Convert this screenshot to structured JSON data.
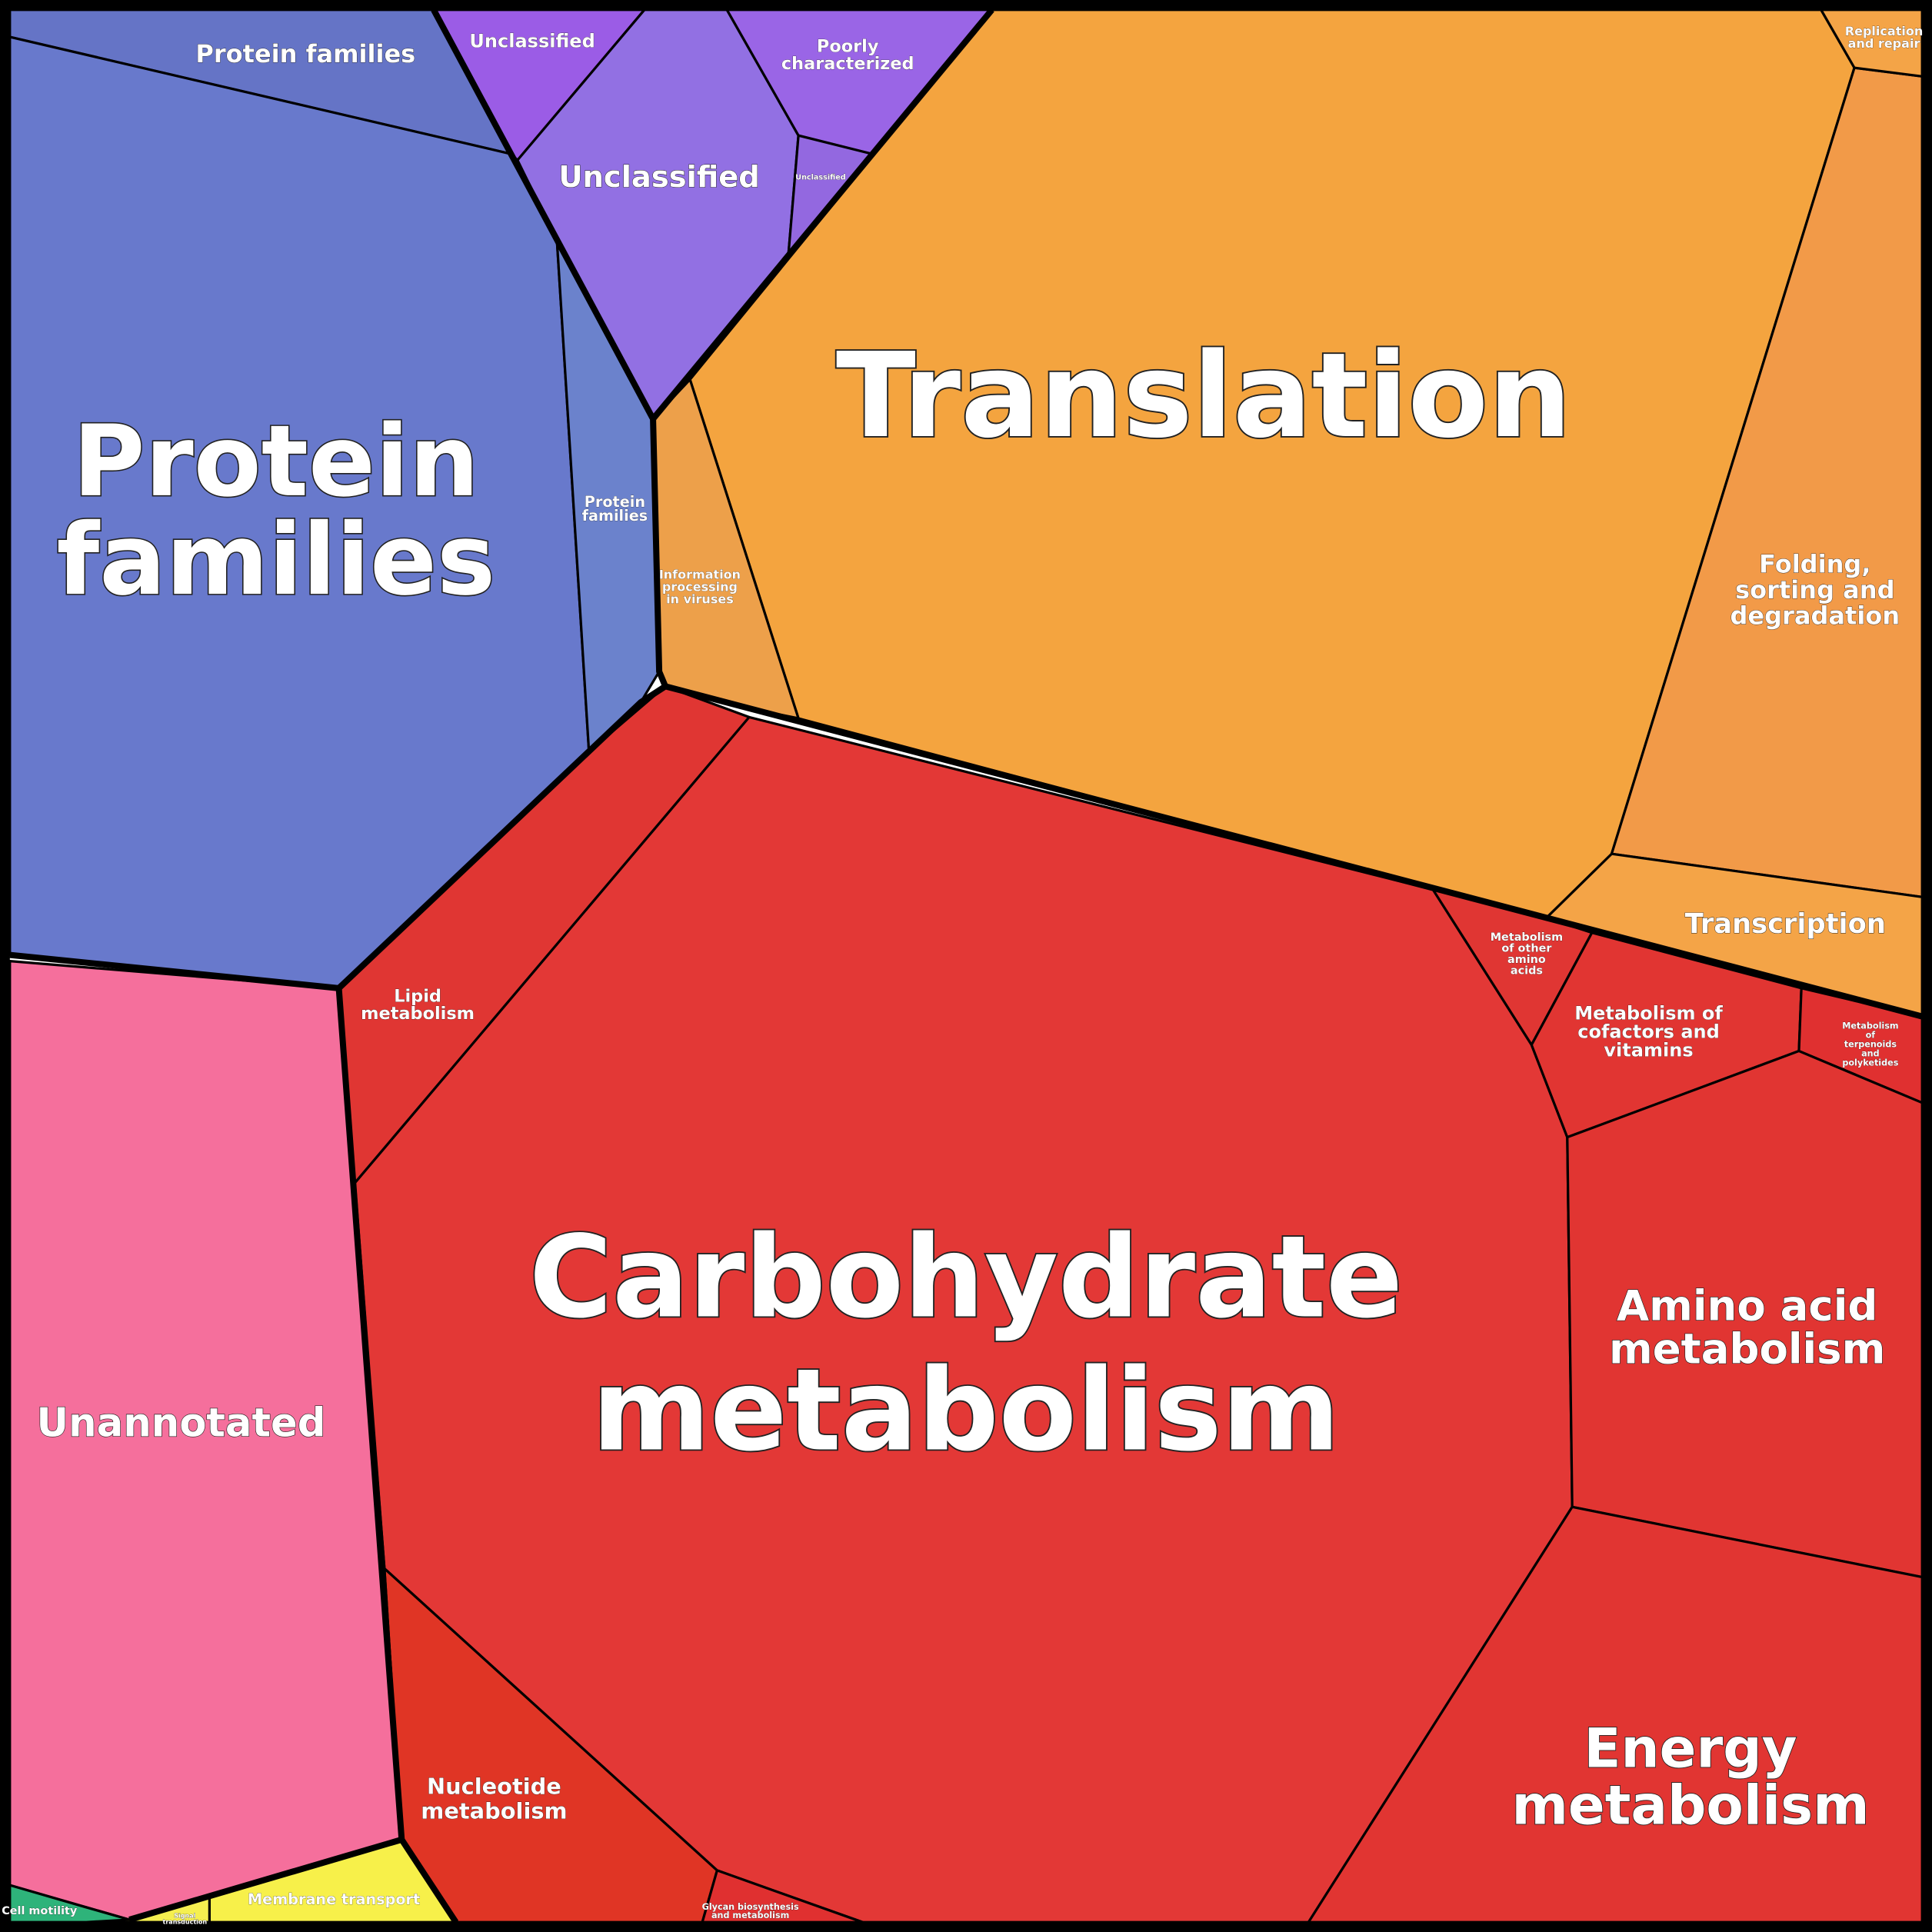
{
  "cells": [
    {
      "lines": [
        "Protein families"
      ]
    },
    {
      "lines": [
        "Protein",
        "families"
      ]
    },
    {
      "lines": [
        "Protein",
        "families"
      ]
    },
    {
      "lines": [
        "Unclassified"
      ]
    },
    {
      "lines": [
        "Unclassified"
      ]
    },
    {
      "lines": [
        "Poorly",
        "characterized"
      ]
    },
    {
      "lines": [
        "Unclassified"
      ]
    },
    {
      "lines": [
        "Translation"
      ]
    },
    {
      "lines": [
        "Information",
        "processing",
        "in viruses"
      ]
    },
    {
      "lines": [
        "Folding,",
        "sorting and",
        "degradation"
      ]
    },
    {
      "lines": [
        "Replication",
        "and repair"
      ]
    },
    {
      "lines": [
        "Transcription"
      ]
    },
    {
      "lines": [
        "Carbohydrate",
        "metabolism"
      ]
    },
    {
      "lines": [
        "Lipid",
        "metabolism"
      ]
    },
    {
      "lines": [
        "Metabolism",
        "of other",
        "amino",
        "acids"
      ]
    },
    {
      "lines": [
        "Metabolism of",
        "cofactors and",
        "vitamins"
      ]
    },
    {
      "lines": [
        "Metabolism",
        "of",
        "terpenoids",
        "and",
        "polyketides"
      ]
    },
    {
      "lines": [
        "Amino acid",
        "metabolism"
      ]
    },
    {
      "lines": [
        "Energy",
        "metabolism"
      ]
    },
    {
      "lines": [
        "Nucleotide",
        "metabolism"
      ]
    },
    {
      "lines": [
        "Glycan biosynthesis",
        "and metabolism"
      ]
    },
    {
      "lines": [
        "Unannotated"
      ]
    },
    {
      "lines": [
        "Membrane transport"
      ]
    },
    {
      "lines": [
        "Signal",
        "transduction"
      ]
    },
    {
      "lines": [
        "Cell motility"
      ]
    }
  ]
}
